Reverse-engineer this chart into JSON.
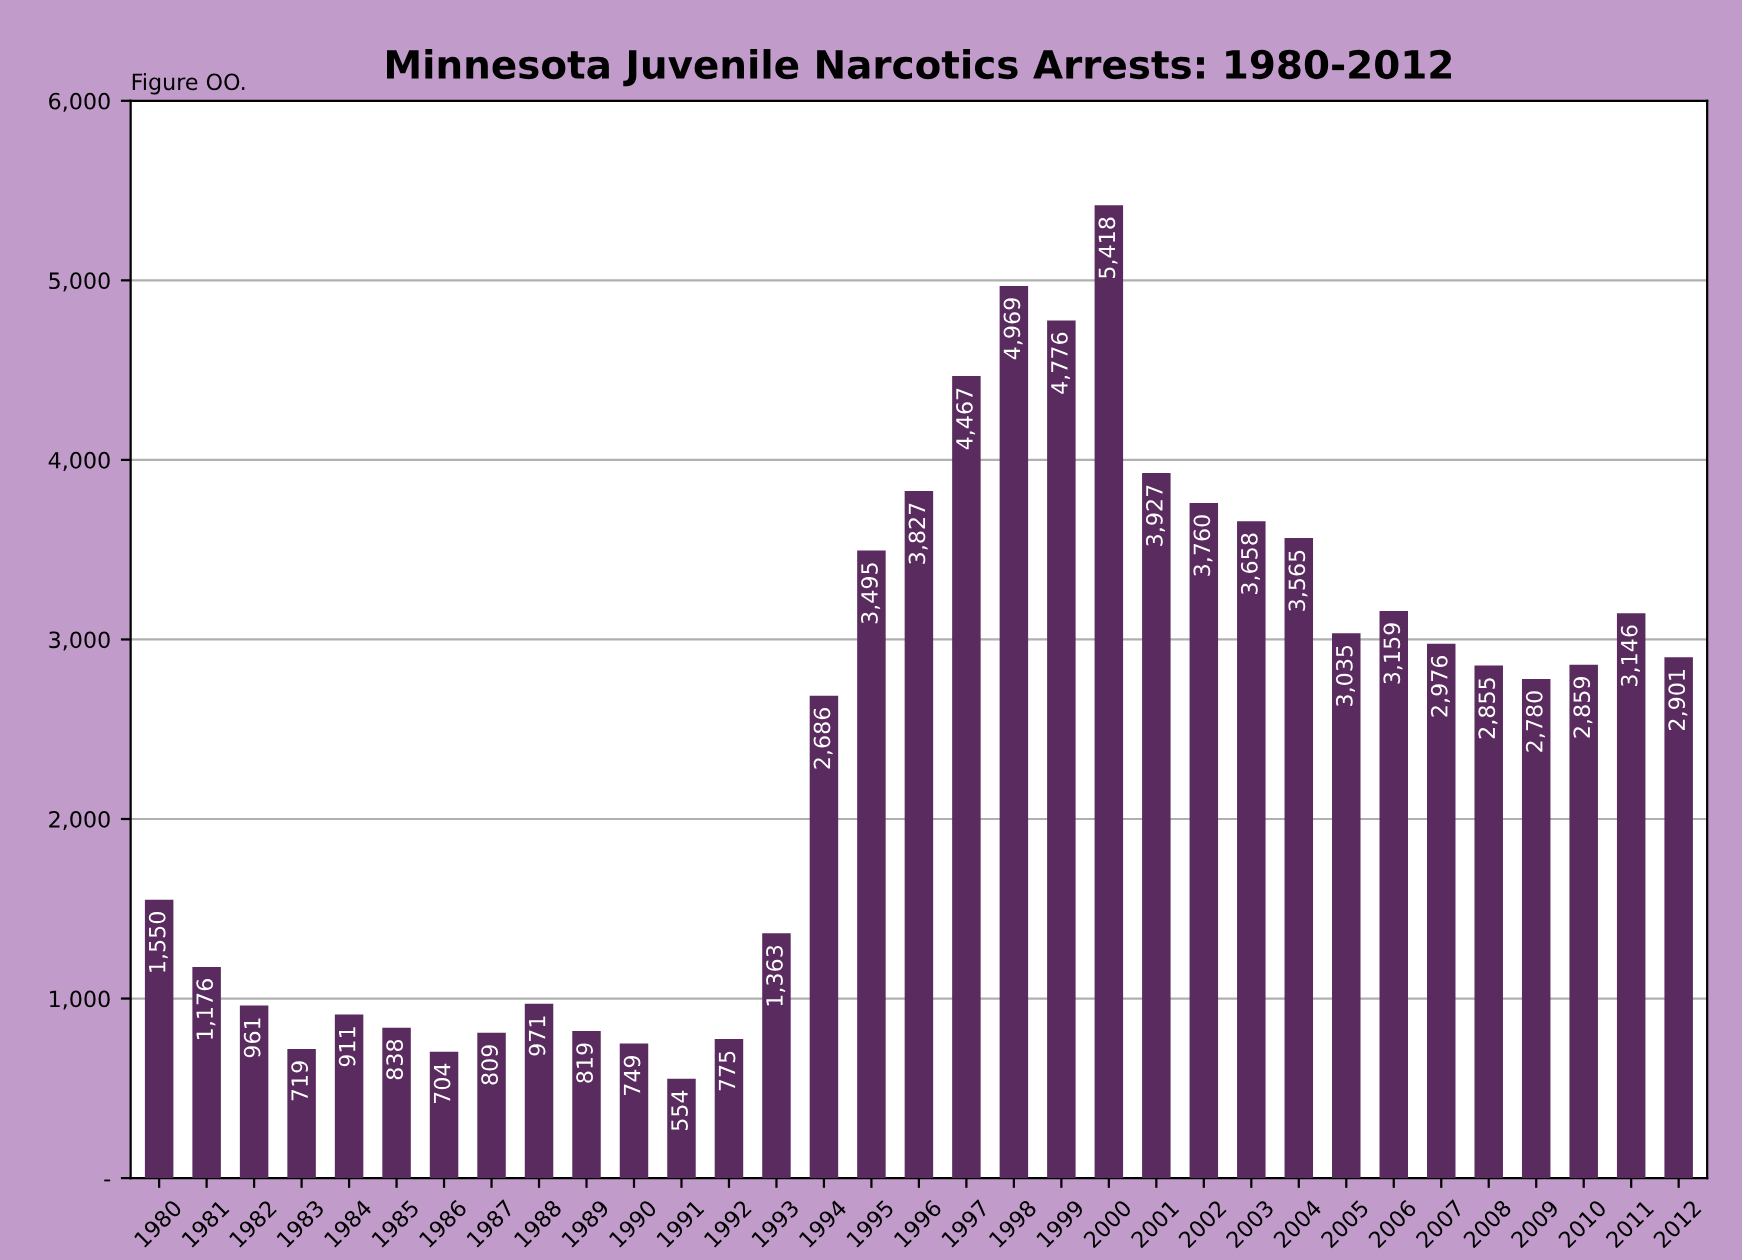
{
  "chart_data": {
    "type": "bar",
    "title": "Minnesota Juvenile Narcotics Arrests: 1980-2012",
    "annotations": [
      "Figure OO."
    ],
    "categories": [
      "1980",
      "1981",
      "1982",
      "1983",
      "1984",
      "1985",
      "1986",
      "1987",
      "1988",
      "1989",
      "1990",
      "1991",
      "1992",
      "1993",
      "1994",
      "1995",
      "1996",
      "1997",
      "1998",
      "1999",
      "2000",
      "2001",
      "2002",
      "2003",
      "2004",
      "2005",
      "2006",
      "2007",
      "2008",
      "2009",
      "2010",
      "2011",
      "2012"
    ],
    "values": [
      1550,
      1176,
      961,
      719,
      911,
      838,
      704,
      809,
      971,
      819,
      749,
      554,
      775,
      1363,
      2686,
      3495,
      3827,
      4467,
      4969,
      4776,
      5418,
      3927,
      3760,
      3658,
      3565,
      3035,
      3159,
      2976,
      2855,
      2780,
      2859,
      3146,
      2901
    ],
    "value_labels": [
      "1,550",
      "1,176",
      "961",
      "719",
      "911",
      "838",
      "704",
      "809",
      "971",
      "819",
      "749",
      "554",
      "775",
      "1,363",
      "2,686",
      "3,495",
      "3,827",
      "4,467",
      "4,969",
      "4,776",
      "5,418",
      "3,927",
      "3,760",
      "3,658",
      "3,565",
      "3,035",
      "3,159",
      "2,976",
      "2,855",
      "2,780",
      "2,859",
      "3,146",
      "2,901"
    ],
    "color": "#5a2b5e",
    "ylim": [
      0,
      6000
    ],
    "yticks": [
      {
        "value": 0,
        "label": "-"
      },
      {
        "value": 1000,
        "label": "1,000"
      },
      {
        "value": 2000,
        "label": "2,000"
      },
      {
        "value": 3000,
        "label": "3,000"
      },
      {
        "value": 4000,
        "label": "4,000"
      },
      {
        "value": 5000,
        "label": "5,000"
      },
      {
        "value": 6000,
        "label": "6,000"
      }
    ],
    "grid": "y"
  }
}
